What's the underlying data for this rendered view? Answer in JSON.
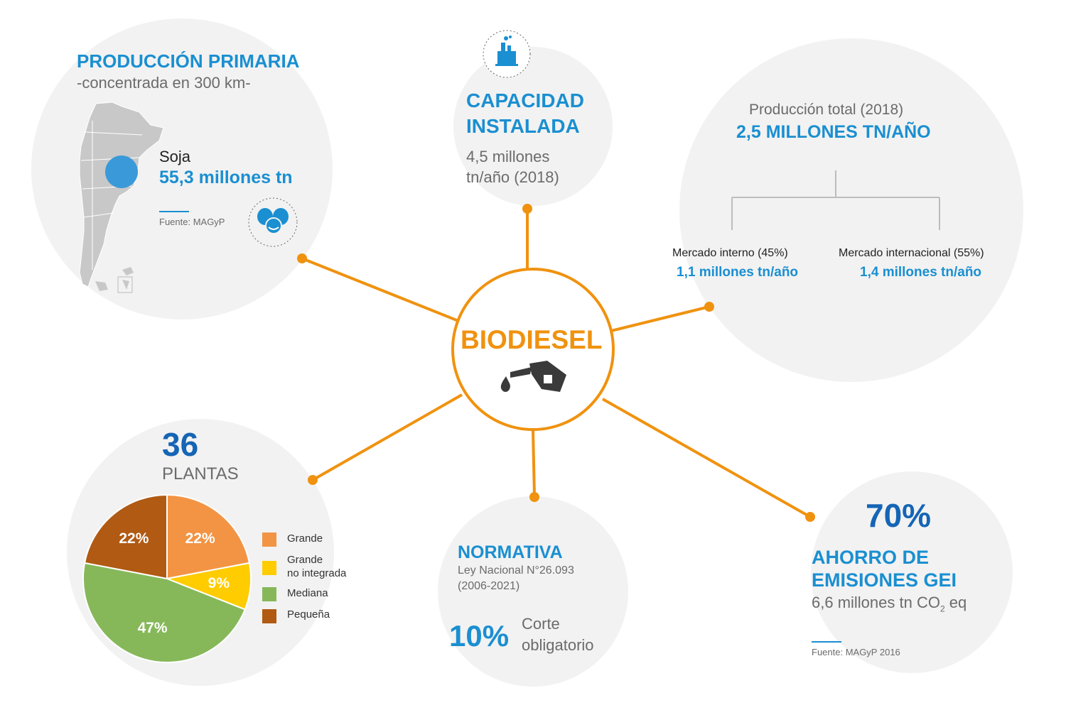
{
  "center": {
    "title": "BIODIESEL"
  },
  "produccion_primaria": {
    "title": "PRODUCCIÓN PRIMARIA",
    "subtitle": "-concentrada en 300 km-",
    "crop": "Soja",
    "amount": "55,3 millones tn",
    "source": "Fuente: MAGyP"
  },
  "capacidad": {
    "title_line1": "CAPACIDAD",
    "title_line2": "INSTALADA",
    "value_line1": "4,5 millones",
    "value_line2": "tn/año (2018)"
  },
  "produccion_total": {
    "label": "Producción total (2018)",
    "value": "2,5 MILLONES TN/AÑO",
    "interno_label": "Mercado interno (45%)",
    "interno_value": "1,1 millones tn/año",
    "internacional_label": "Mercado internacional (55%)",
    "internacional_value": "1,4 millones tn/año"
  },
  "plantas": {
    "count": "36",
    "label": "PLANTAS",
    "legend": [
      {
        "label": "Grande",
        "color": "#f29444"
      },
      {
        "label": "Grande\nno integrada",
        "color": "#ffcc00"
      },
      {
        "label": "Mediana",
        "color": "#86b85a"
      },
      {
        "label": "Pequeña",
        "color": "#b05a13"
      }
    ]
  },
  "chart_data": {
    "type": "pie",
    "categories": [
      "Grande",
      "Grande no integrada",
      "Mediana",
      "Pequeña"
    ],
    "values": [
      22,
      9,
      47,
      22
    ],
    "value_labels": [
      "22%",
      "9%",
      "47%",
      "22%"
    ],
    "colors": [
      "#f29444",
      "#ffcc00",
      "#86b85a",
      "#b05a13"
    ],
    "title": "36 PLANTAS",
    "legend_position": "right"
  },
  "normativa": {
    "title": "NORMATIVA",
    "law_line1": "Ley Nacional N°26.093",
    "law_line2": "(2006-2021)",
    "percent": "10%",
    "corte_line1": "Corte",
    "corte_line2": "obligatorio"
  },
  "ahorro": {
    "percent": "70%",
    "title_line1": "AHORRO DE",
    "title_line2": "EMISIONES GEI",
    "value_prefix": "6,6 millones tn CO",
    "value_sub": "2",
    "value_suffix": " eq",
    "source": "Fuente: MAGyP 2016"
  },
  "colors": {
    "accent": "#f0920f",
    "blue": "#1a8fd1",
    "circle_bg": "#f2f2f2",
    "map": "#c8c8c8"
  }
}
